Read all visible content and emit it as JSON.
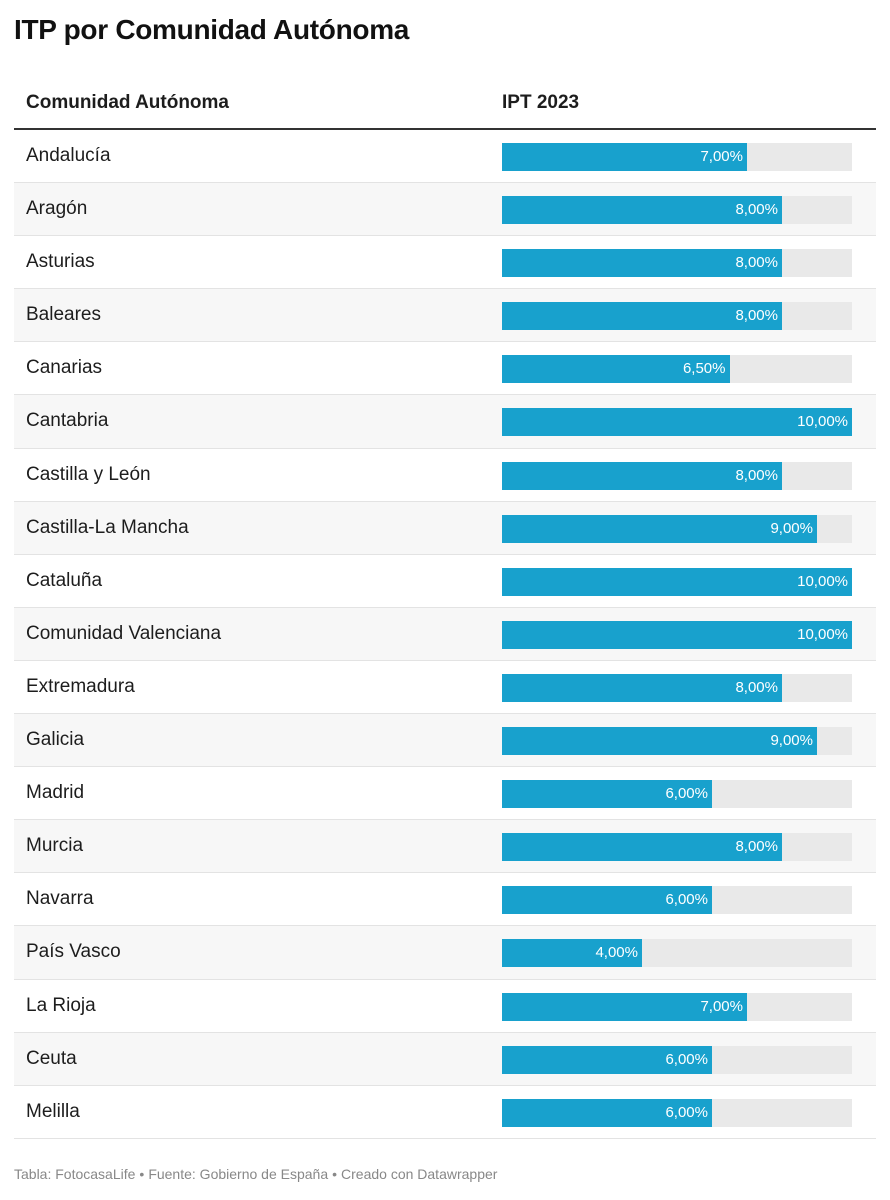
{
  "title": "ITP por Comunidad Autónoma",
  "table": {
    "headers": {
      "name": "Comunidad Autónoma",
      "value": "IPT 2023"
    }
  },
  "colors": {
    "bar": "#18a1cd",
    "track": "#e9e9e9"
  },
  "chart_data": {
    "type": "table",
    "title": "ITP por Comunidad Autónoma",
    "columns": [
      "Comunidad Autónoma",
      "IPT 2023"
    ],
    "xlim": [
      0,
      10
    ],
    "rows": [
      {
        "name": "Andalucía",
        "value": 7.0,
        "label": "7,00%"
      },
      {
        "name": "Aragón",
        "value": 8.0,
        "label": "8,00%"
      },
      {
        "name": "Asturias",
        "value": 8.0,
        "label": "8,00%"
      },
      {
        "name": "Baleares",
        "value": 8.0,
        "label": "8,00%"
      },
      {
        "name": "Canarias",
        "value": 6.5,
        "label": "6,50%"
      },
      {
        "name": "Cantabria",
        "value": 10.0,
        "label": "10,00%"
      },
      {
        "name": "Castilla y León",
        "value": 8.0,
        "label": "8,00%"
      },
      {
        "name": "Castilla-La Mancha",
        "value": 9.0,
        "label": "9,00%"
      },
      {
        "name": "Cataluña",
        "value": 10.0,
        "label": "10,00%"
      },
      {
        "name": "Comunidad Valenciana",
        "value": 10.0,
        "label": "10,00%"
      },
      {
        "name": "Extremadura",
        "value": 8.0,
        "label": "8,00%"
      },
      {
        "name": "Galicia",
        "value": 9.0,
        "label": "9,00%"
      },
      {
        "name": "Madrid",
        "value": 6.0,
        "label": "6,00%"
      },
      {
        "name": "Murcia",
        "value": 8.0,
        "label": "8,00%"
      },
      {
        "name": "Navarra",
        "value": 6.0,
        "label": "6,00%"
      },
      {
        "name": "País Vasco",
        "value": 4.0,
        "label": "4,00%"
      },
      {
        "name": "La Rioja",
        "value": 7.0,
        "label": "7,00%"
      },
      {
        "name": "Ceuta",
        "value": 6.0,
        "label": "6,00%"
      },
      {
        "name": "Melilla",
        "value": 6.0,
        "label": "6,00%"
      }
    ]
  },
  "footer": {
    "table_credit": "Tabla: FotocasaLife",
    "source": "Fuente: Gobierno de España",
    "created": "Creado con Datawrapper",
    "separator": "•"
  }
}
